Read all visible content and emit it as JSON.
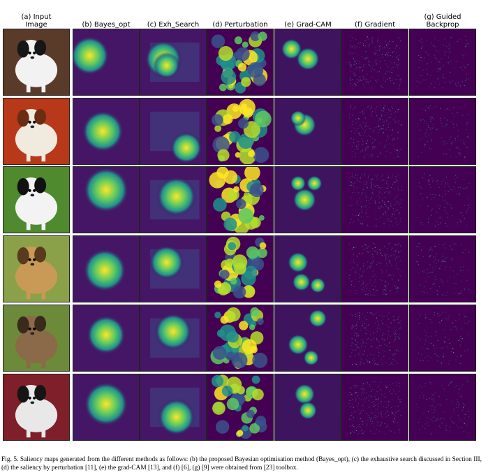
{
  "figure": {
    "columns": [
      {
        "key": "input",
        "label": "(a) Input\nImage"
      },
      {
        "key": "bayes",
        "label": "(b) Bayes_opt"
      },
      {
        "key": "exh",
        "label": "(c) Exh_Search"
      },
      {
        "key": "pert",
        "label": "(d) Perturbation"
      },
      {
        "key": "gradcam",
        "label": "(e) Grad-CAM"
      },
      {
        "key": "gradient",
        "label": "(f) Gradient"
      },
      {
        "key": "guided",
        "label": "(g) Guided\nBackprop"
      }
    ],
    "rows": [
      {
        "subject": "black-and-white dog on wooden floor",
        "palette": {
          "bg": "#5a3b2a",
          "fur": "#f2f2f2",
          "dark": "#161616"
        }
      },
      {
        "subject": "cavalier spaniel lying on red rug",
        "palette": {
          "bg": "#b8381a",
          "fur": "#f0eadf",
          "dark": "#6b2c14"
        }
      },
      {
        "subject": "papillon dog on grass with striped shirt",
        "palette": {
          "bg": "#4f8a2e",
          "fur": "#f3f3f3",
          "dark": "#111111"
        }
      },
      {
        "subject": "afghan hound standing in grass",
        "palette": {
          "bg": "#8aa14a",
          "fur": "#c89a55",
          "dark": "#5a3a1c"
        }
      },
      {
        "subject": "terrier with harness in tall grass",
        "palette": {
          "bg": "#6c8a3a",
          "fur": "#8a6a48",
          "dark": "#3a2a1c"
        }
      },
      {
        "subject": "boston terrier in red blanket",
        "palette": {
          "bg": "#7e1f2a",
          "fur": "#e8e8e8",
          "dark": "#151515"
        }
      }
    ],
    "colormap": {
      "low": "#440154",
      "mid": "#21918c",
      "high": "#fde725"
    }
  },
  "caption": "Fig. 5.  Saliency maps generated from the different methods as follows: (b) the proposed Bayesian optimisation method (Bayes_opt), (c) the exhaustive search discussed in Section III, (d) the saliency by perturbation [11], (e) the grad-CAM [13], and (f) [6], (g) [9] were obtained from [23] toolbox."
}
